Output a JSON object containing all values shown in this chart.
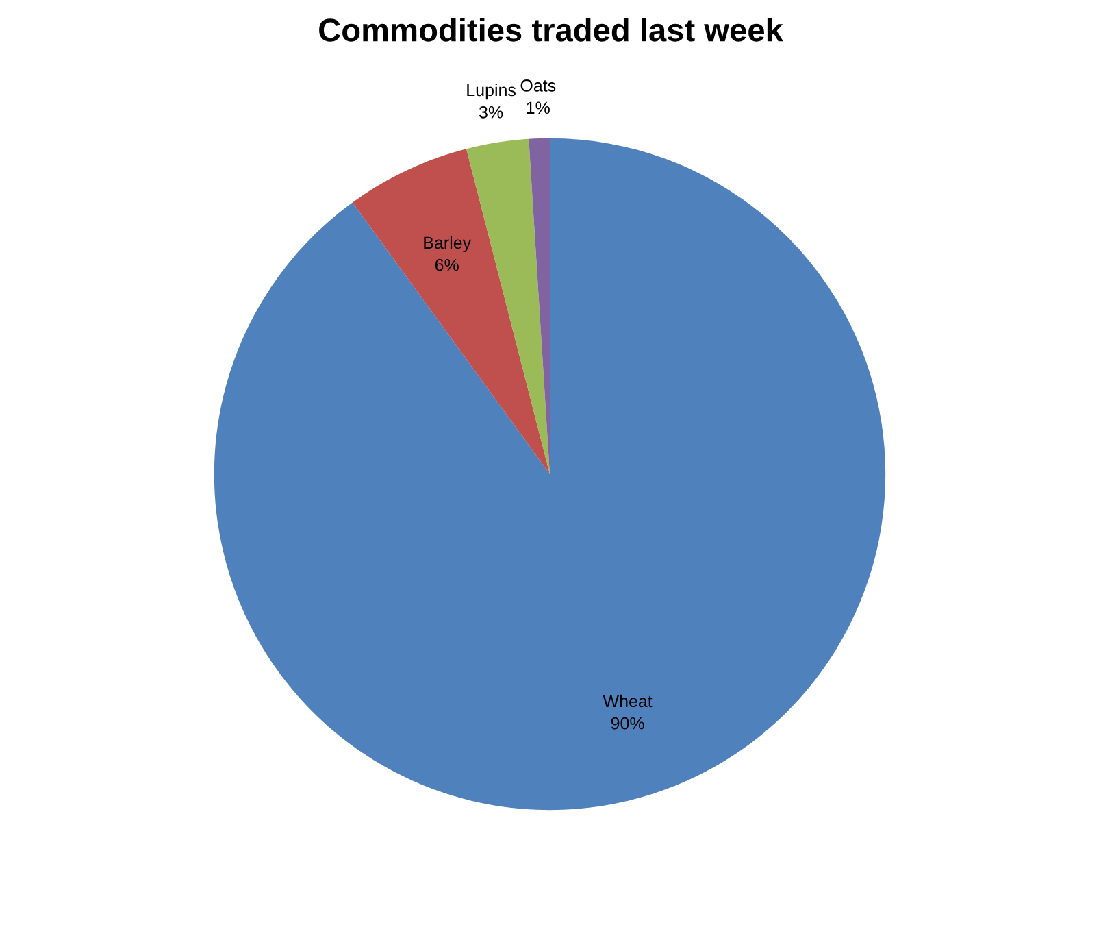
{
  "chart_data": {
    "type": "pie",
    "title": "Commodities traded last week",
    "categories": [
      "Wheat",
      "Barley",
      "Lupins",
      "Oats"
    ],
    "values": [
      90,
      6,
      3,
      1
    ],
    "value_labels": [
      "90%",
      "6%",
      "3%",
      "1%"
    ],
    "colors": [
      "#4f81bd",
      "#c0504d",
      "#9bbb59",
      "#8064a2"
    ],
    "legend": false
  }
}
